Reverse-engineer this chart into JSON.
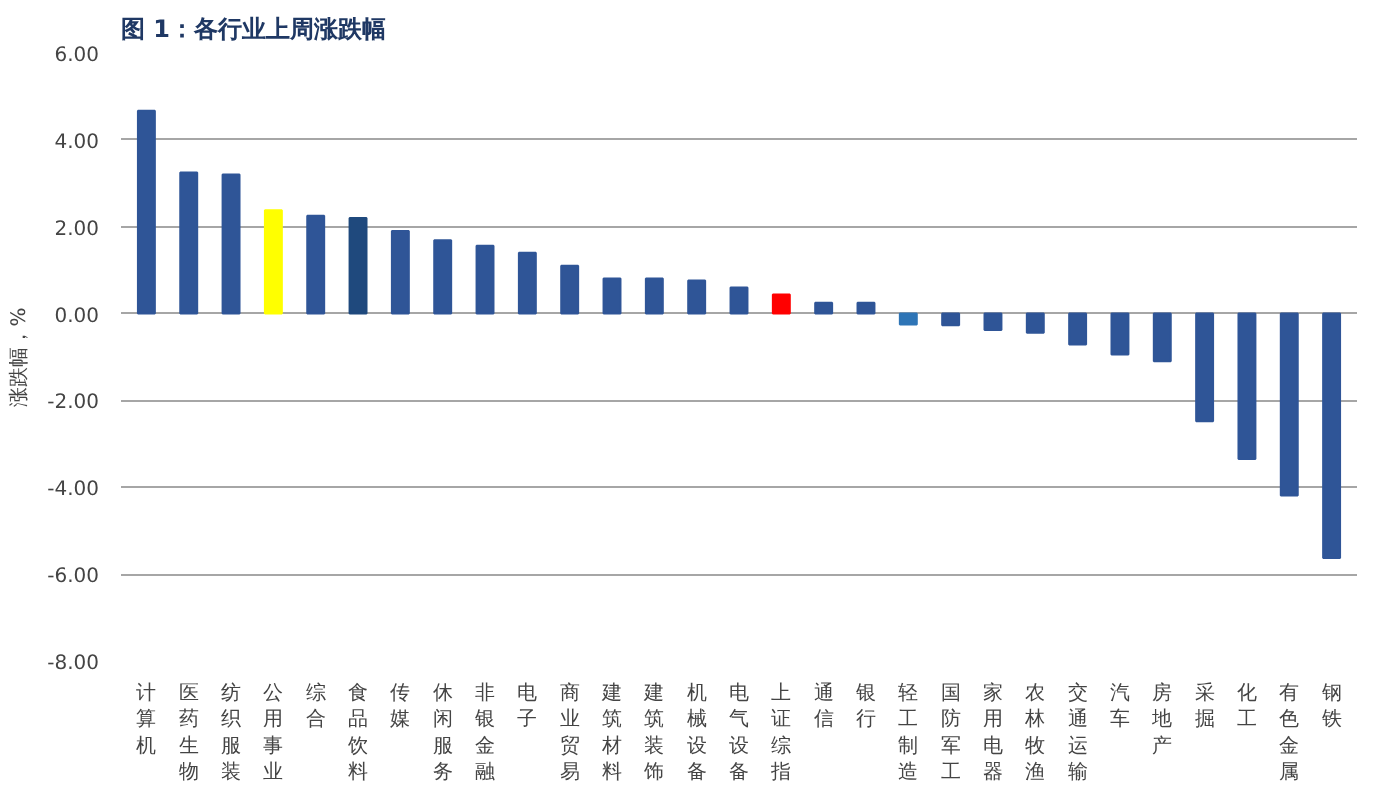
{
  "chart_data": {
    "type": "bar",
    "title": "图 1：各行业上周涨跌幅",
    "ylabel": "涨跌幅，%",
    "categories": [
      "计算机",
      "医药生物",
      "纺织服装",
      "公用事业",
      "综合",
      "食品饮料",
      "传媒",
      "休闲服务",
      "非银金融",
      "电子",
      "商业贸易",
      "建筑材料",
      "建筑装饰",
      "机械设备",
      "电气设备",
      "上证综指",
      "通信",
      "银行",
      "轻工制造",
      "国防军工",
      "家用电器",
      "农林牧渔",
      "交通运输",
      "汽车",
      "房地产",
      "采掘",
      "化工",
      "有色金属",
      "钢铁"
    ],
    "values": [
      4.67,
      3.25,
      3.2,
      2.38,
      2.25,
      2.2,
      1.9,
      1.69,
      1.56,
      1.4,
      1.1,
      0.81,
      0.81,
      0.76,
      0.6,
      0.44,
      0.25,
      0.25,
      -0.25,
      -0.27,
      -0.38,
      -0.44,
      -0.71,
      -0.94,
      -1.1,
      -2.48,
      -3.35,
      -4.19,
      -5.63
    ],
    "colors": [
      "#2f5597",
      "#2f5597",
      "#2f5597",
      "#ffff00",
      "#2f5597",
      "#1f497d",
      "#2f5597",
      "#2f5597",
      "#2f5597",
      "#2f5597",
      "#2f5597",
      "#2f5597",
      "#2f5597",
      "#2f5597",
      "#2f5597",
      "#ff0000",
      "#2f5597",
      "#2f5597",
      "#2e75b6",
      "#2f5597",
      "#2f5597",
      "#2f5597",
      "#2f5597",
      "#2f5597",
      "#2f5597",
      "#2f5597",
      "#2f5597",
      "#2f5597",
      "#2f5597"
    ],
    "ylim": [
      -8,
      6
    ],
    "yticks": [
      {
        "value": -8,
        "label": "-8.00"
      },
      {
        "value": -6,
        "label": "-6.00"
      },
      {
        "value": -4,
        "label": "-4.00"
      },
      {
        "value": -2,
        "label": "-2.00"
      },
      {
        "value": 0,
        "label": "0.00"
      },
      {
        "value": 2,
        "label": "2.00"
      },
      {
        "value": 4,
        "label": "4.00"
      },
      {
        "value": 6,
        "label": "6.00"
      }
    ],
    "grid": "y"
  }
}
